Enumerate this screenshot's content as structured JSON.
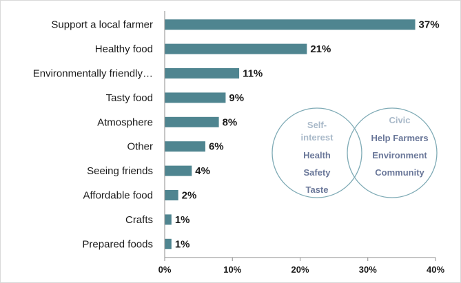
{
  "chart_data": {
    "type": "bar",
    "orientation": "horizontal",
    "categories": [
      "Support a local farmer",
      "Healthy food",
      "Environmentally friendly…",
      "Tasty food",
      "Atmosphere",
      "Other",
      "Seeing friends",
      "Affordable food",
      "Crafts",
      "Prepared foods"
    ],
    "values": [
      37,
      21,
      11,
      9,
      8,
      6,
      4,
      2,
      1,
      1
    ],
    "data_labels": [
      "37%",
      "21%",
      "11%",
      "9%",
      "8%",
      "6%",
      "4%",
      "2%",
      "1%",
      "1%"
    ],
    "xlim": [
      0,
      40
    ],
    "xticks": [
      0,
      10,
      20,
      30,
      40
    ],
    "xtick_labels": [
      "0%",
      "10%",
      "20%",
      "30%",
      "40%"
    ],
    "bar_color": "#4f8590",
    "grid": false,
    "annotation": {
      "type": "venn",
      "circle_color": "#7eaab5",
      "left": {
        "title_lines": [
          "Self-",
          "interest"
        ],
        "items": [
          "Health",
          "Safety",
          "Taste"
        ]
      },
      "right": {
        "title_lines": [
          "Civic"
        ],
        "items": [
          "Help Farmers",
          "Environment",
          "Community"
        ]
      }
    }
  }
}
